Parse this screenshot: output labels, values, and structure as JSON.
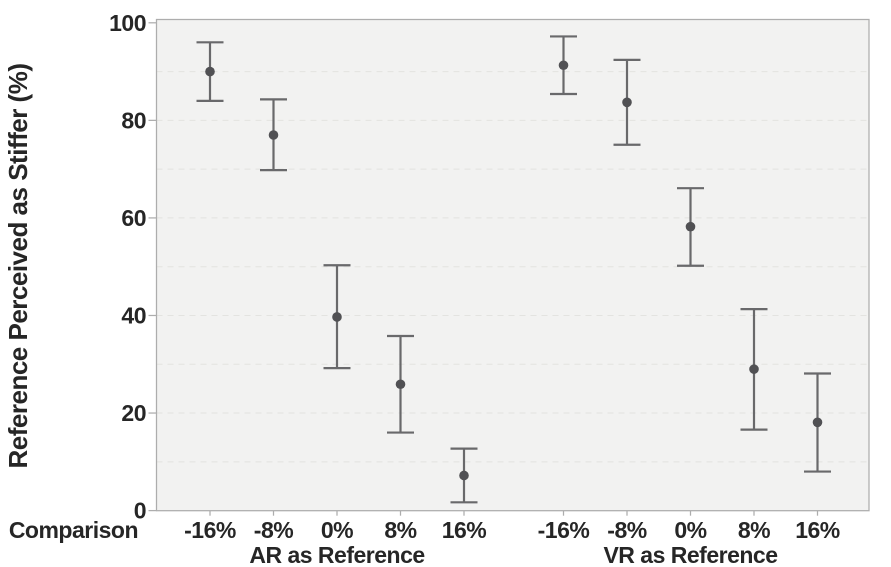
{
  "figure": {
    "background": "#ffffff"
  },
  "chart_data": {
    "type": "scatter",
    "subtype": "means-with-error-bars",
    "title": "",
    "ylabel": "Reference Perceived as Stiffer (%)",
    "xlabel": "Comparison",
    "ylim": [
      0,
      100
    ],
    "yticks": [
      0,
      20,
      40,
      60,
      80,
      100
    ],
    "gridline_step": 10,
    "grid": true,
    "legend_position": "none",
    "categories": [
      "-16%",
      "-8%",
      "0%",
      "8%",
      "16%"
    ],
    "groups": [
      {
        "label": "AR as Reference",
        "points": [
          {
            "comparison": "-16%",
            "mean": 90.0,
            "ci_low": 84.0,
            "ci_high": 96.0
          },
          {
            "comparison": "-8%",
            "mean": 77.0,
            "ci_low": 69.8,
            "ci_high": 84.3
          },
          {
            "comparison": "0%",
            "mean": 39.7,
            "ci_low": 29.2,
            "ci_high": 50.3
          },
          {
            "comparison": "8%",
            "mean": 25.9,
            "ci_low": 16.0,
            "ci_high": 35.8
          },
          {
            "comparison": "16%",
            "mean": 7.2,
            "ci_low": 1.7,
            "ci_high": 12.7
          }
        ]
      },
      {
        "label": "VR as Reference",
        "points": [
          {
            "comparison": "-16%",
            "mean": 91.3,
            "ci_low": 85.4,
            "ci_high": 97.2
          },
          {
            "comparison": "-8%",
            "mean": 83.7,
            "ci_low": 75.0,
            "ci_high": 92.4
          },
          {
            "comparison": "0%",
            "mean": 58.2,
            "ci_low": 50.2,
            "ci_high": 66.1
          },
          {
            "comparison": "8%",
            "mean": 29.0,
            "ci_low": 16.6,
            "ci_high": 41.3
          },
          {
            "comparison": "16%",
            "mean": 18.1,
            "ci_low": 8.0,
            "ci_high": 28.1
          }
        ]
      }
    ],
    "style": {
      "point_color": "#515154",
      "errorbar_color": "#69696b",
      "plot_bg": "#f2f2f1",
      "grid_color": "#e3e3e0",
      "frame_color": "#adadad",
      "text_color": "#262626"
    }
  }
}
